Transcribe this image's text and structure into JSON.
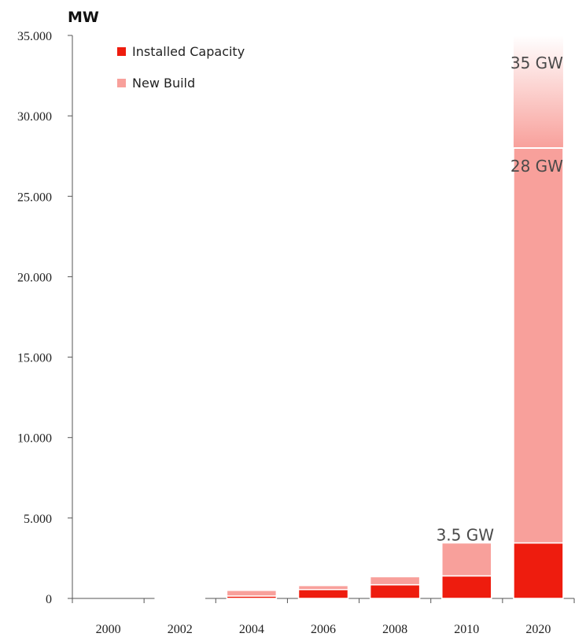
{
  "chart_data": {
    "type": "bar",
    "stacked": true,
    "ylabel": "MW",
    "categories": [
      "2000",
      "2002",
      "2004",
      "2006",
      "2008",
      "2010",
      "2020"
    ],
    "ylim": [
      0,
      35000
    ],
    "y_ticks": [
      "35.000",
      "30.000",
      "25.000",
      "20.000",
      "15.000",
      "10.000",
      "5.000",
      "0"
    ],
    "y_tick_values": [
      35000,
      30000,
      25000,
      20000,
      15000,
      10000,
      5000,
      0
    ],
    "series": [
      {
        "name": "Installed Capacity",
        "color": "#ee1c0e",
        "values": [
          0,
          30,
          150,
          550,
          850,
          1400,
          3450
        ]
      },
      {
        "name": "New Build",
        "color": "#f8a09b",
        "values": [
          0,
          60,
          350,
          250,
          500,
          2050,
          24550
        ]
      }
    ],
    "faded_segment": {
      "category": "2020",
      "from": 28000,
      "to": 35000,
      "color": "#f8a09b"
    },
    "annotations": [
      {
        "text": "3.5 GW",
        "category": "2010",
        "value": 3500
      },
      {
        "text": "28 GW",
        "category": "2020",
        "value": 28000
      },
      {
        "text": "35 GW",
        "category": "2020",
        "value": 35000
      }
    ],
    "legend_position": "top-left"
  }
}
